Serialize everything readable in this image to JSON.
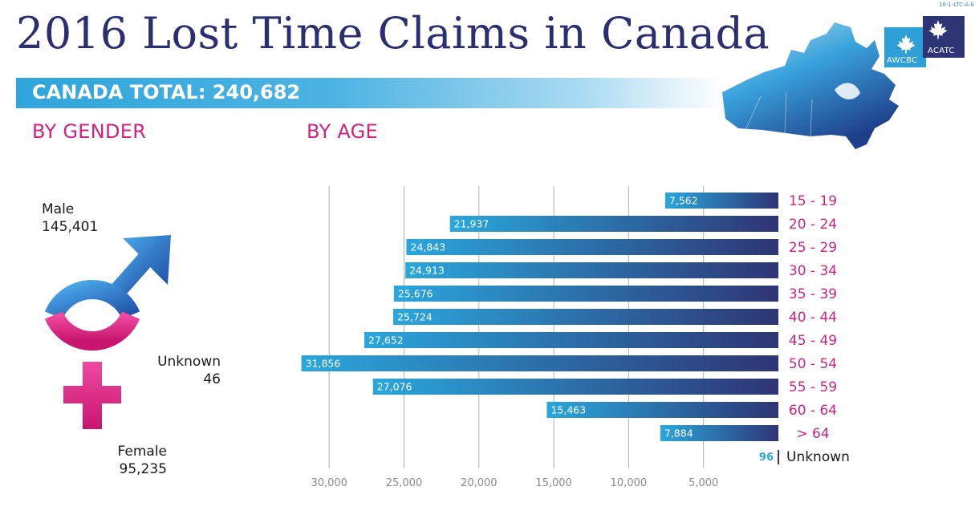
{
  "doc_code": "16-1-LTC-A-E",
  "title": "2016 Lost Time Claims in Canada",
  "banner": "CANADA TOTAL: 240,682",
  "logos": {
    "left": "AWCBC",
    "right": "ACATC"
  },
  "sections": {
    "gender": "BY GENDER",
    "age": "BY AGE"
  },
  "gender": {
    "male_label": "Male",
    "male_value": "145,401",
    "unknown_label": "Unknown",
    "unknown_value": "46",
    "female_label": "Female",
    "female_value": "95,235"
  },
  "colors": {
    "title": "#2c2f6f",
    "accent": "#d1237e",
    "banner": "#2fa5dc",
    "bar_light": "#2aa7dc",
    "bar_dark": "#2e3574",
    "grid": "#b0b0b0",
    "axis_text": "#8c8c8c"
  },
  "chart_data": {
    "type": "bar",
    "orientation": "horizontal",
    "direction": "right-to-left",
    "title": "BY AGE",
    "categories": [
      "15 - 19",
      "20 - 24",
      "25 - 29",
      "30 - 34",
      "35 - 39",
      "40 - 44",
      "45 - 49",
      "50 - 54",
      "55 - 59",
      "60 - 64",
      "> 64",
      "Unknown"
    ],
    "values": [
      7562,
      21937,
      24843,
      24913,
      25676,
      25724,
      27652,
      31856,
      27076,
      15463,
      7884,
      96
    ],
    "value_labels": [
      "7,562",
      "21,937",
      "24,843",
      "24,913",
      "25,676",
      "25,724",
      "27,652",
      "31,856",
      "27,076",
      "15,463",
      "7,884",
      "96"
    ],
    "xlim": [
      0,
      30000
    ],
    "xticks": [
      30000,
      25000,
      20000,
      15000,
      10000,
      5000
    ],
    "xtick_labels": [
      "30,000",
      "25,000",
      "20,000",
      "15,000",
      "10,000",
      "5,000"
    ],
    "grid": true
  }
}
